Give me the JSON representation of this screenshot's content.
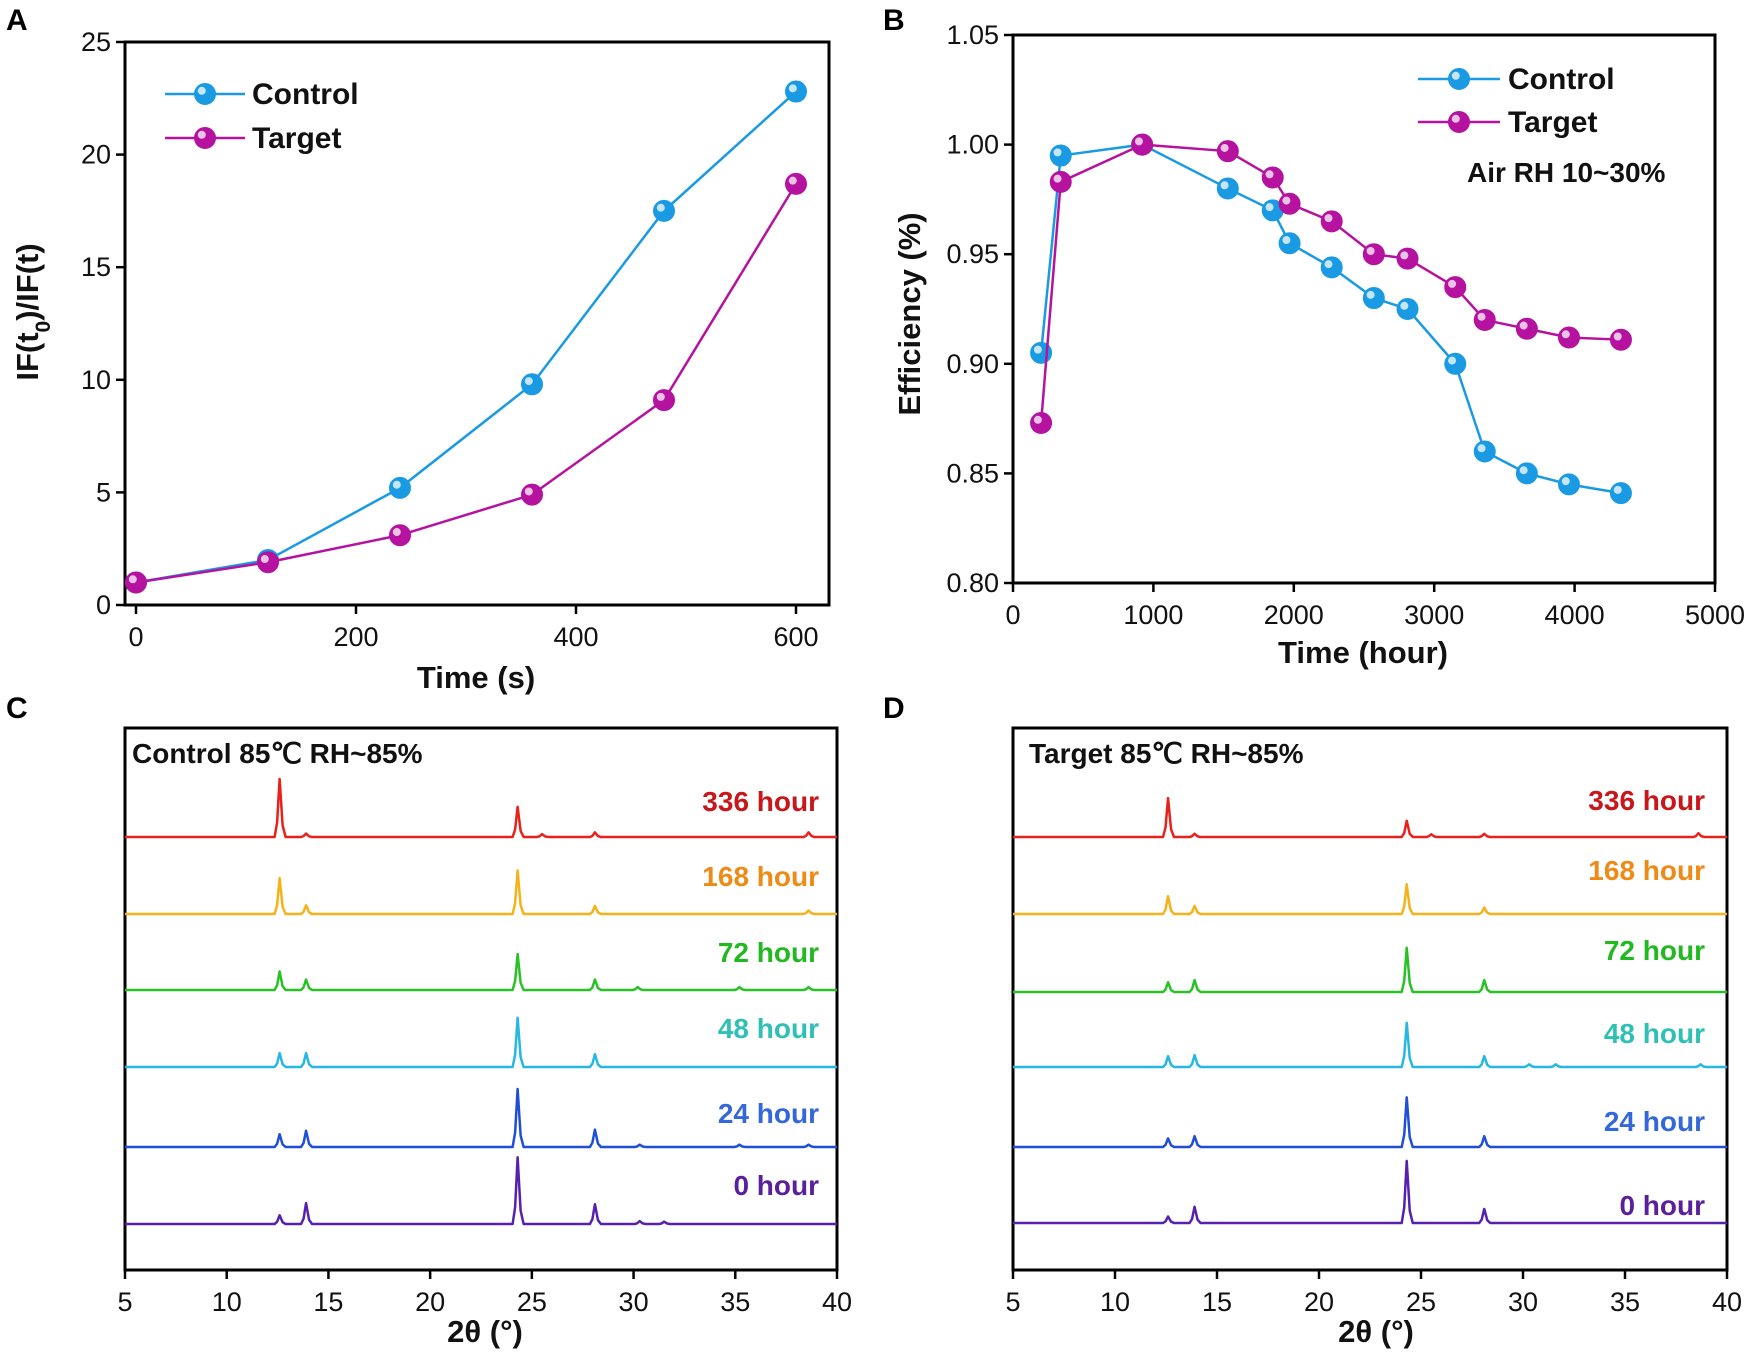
{
  "colors": {
    "control": "#1a9ae3",
    "target": "#b5129f",
    "axis": "#000000"
  },
  "chart_data": [
    {
      "panel": "A",
      "type": "line",
      "xlabel": "Time (s)",
      "ylabel": "IF(t0)/IF(t)",
      "xlim": [
        -10,
        630
      ],
      "ylim": [
        0,
        25
      ],
      "xticks": [
        0,
        200,
        400,
        600
      ],
      "yticks": [
        0,
        5,
        10,
        15,
        20,
        25
      ],
      "legend_position": "top-left",
      "series": [
        {
          "name": "Control",
          "color": "#1a9ae3",
          "x": [
            0,
            120,
            240,
            360,
            480,
            600
          ],
          "y": [
            1.0,
            2.0,
            5.2,
            9.8,
            17.5,
            22.8
          ]
        },
        {
          "name": "Target",
          "color": "#b5129f",
          "x": [
            0,
            120,
            240,
            360,
            480,
            600
          ],
          "y": [
            1.0,
            1.9,
            3.1,
            4.9,
            9.1,
            18.7
          ]
        }
      ]
    },
    {
      "panel": "B",
      "type": "line",
      "xlabel": "Time (hour)",
      "ylabel": "Efficiency (%)",
      "xlim": [
        0,
        5000
      ],
      "ylim": [
        0.8,
        1.05
      ],
      "xticks": [
        0,
        1000,
        2000,
        3000,
        4000,
        5000
      ],
      "yticks": [
        0.8,
        0.85,
        0.9,
        0.95,
        1.0,
        1.05
      ],
      "legend_position": "top-right",
      "annotation": "Air RH 10~30%",
      "series": [
        {
          "name": "Control",
          "color": "#1a9ae3",
          "x": [
            200,
            340,
            920,
            1530,
            1850,
            1970,
            2270,
            2570,
            2810,
            3150,
            3360,
            3660,
            3960,
            4330
          ],
          "y": [
            0.905,
            0.995,
            1.0,
            0.98,
            0.97,
            0.955,
            0.944,
            0.93,
            0.925,
            0.9,
            0.86,
            0.85,
            0.845,
            0.841
          ]
        },
        {
          "name": "Target",
          "color": "#b5129f",
          "x": [
            200,
            340,
            920,
            1530,
            1850,
            1970,
            2270,
            2570,
            2810,
            3150,
            3360,
            3660,
            3960,
            4330
          ],
          "y": [
            0.873,
            0.983,
            1.0,
            0.997,
            0.985,
            0.973,
            0.965,
            0.95,
            0.948,
            0.935,
            0.92,
            0.916,
            0.912,
            0.911
          ]
        }
      ]
    },
    {
      "panel": "C",
      "type": "line",
      "title": "Control 85℃ RH~85%",
      "xlabel": "2θ (°)",
      "xlim": [
        5,
        40
      ],
      "xticks": [
        5,
        10,
        15,
        20,
        25,
        30,
        35,
        40
      ],
      "series": [
        {
          "name": "336 hour",
          "color": "#e8221b",
          "label_color": "#c8171a",
          "peaks": [
            [
              12.6,
              1.0
            ],
            [
              13.9,
              0.06
            ],
            [
              24.3,
              0.52
            ],
            [
              25.5,
              0.05
            ],
            [
              28.1,
              0.08
            ],
            [
              38.6,
              0.08
            ]
          ]
        },
        {
          "name": "168 hour",
          "color": "#f6b21a",
          "label_color": "#f08a16",
          "peaks": [
            [
              12.6,
              0.62
            ],
            [
              13.9,
              0.15
            ],
            [
              24.3,
              0.75
            ],
            [
              28.1,
              0.14
            ],
            [
              38.6,
              0.06
            ]
          ]
        },
        {
          "name": "72 hour",
          "color": "#28c225",
          "label_color": "#22b81f",
          "peaks": [
            [
              12.6,
              0.32
            ],
            [
              13.9,
              0.18
            ],
            [
              24.3,
              0.62
            ],
            [
              28.1,
              0.18
            ],
            [
              30.2,
              0.05
            ],
            [
              35.2,
              0.05
            ],
            [
              38.6,
              0.05
            ]
          ]
        },
        {
          "name": "48 hour",
          "color": "#27b7e3",
          "label_color": "#2ec0b5",
          "peaks": [
            [
              12.6,
              0.24
            ],
            [
              13.9,
              0.24
            ],
            [
              24.3,
              0.85
            ],
            [
              28.1,
              0.22
            ]
          ]
        },
        {
          "name": "24 hour",
          "color": "#1f4fd6",
          "label_color": "#3468d8",
          "peaks": [
            [
              12.6,
              0.22
            ],
            [
              13.9,
              0.28
            ],
            [
              24.3,
              1.0
            ],
            [
              28.1,
              0.3
            ],
            [
              30.3,
              0.04
            ],
            [
              35.2,
              0.04
            ],
            [
              38.6,
              0.04
            ]
          ]
        },
        {
          "name": "0 hour",
          "color": "#5621ae",
          "label_color": "#5a1f9c",
          "peaks": [
            [
              12.6,
              0.15
            ],
            [
              13.9,
              0.36
            ],
            [
              24.3,
              1.15
            ],
            [
              28.1,
              0.34
            ],
            [
              30.3,
              0.05
            ],
            [
              31.5,
              0.04
            ]
          ]
        }
      ]
    },
    {
      "panel": "D",
      "type": "line",
      "title": "Target 85℃ RH~85%",
      "xlabel": "2θ (°)",
      "xlim": [
        5,
        40
      ],
      "xticks": [
        5,
        10,
        15,
        20,
        25,
        30,
        35,
        40
      ],
      "series": [
        {
          "name": "336 hour",
          "color": "#e8221b",
          "label_color": "#c8171a",
          "peaks": [
            [
              12.6,
              0.72
            ],
            [
              13.9,
              0.06
            ],
            [
              24.3,
              0.3
            ],
            [
              25.5,
              0.05
            ],
            [
              28.1,
              0.06
            ],
            [
              38.6,
              0.07
            ]
          ]
        },
        {
          "name": "168 hour",
          "color": "#f6b21a",
          "label_color": "#f08a16",
          "peaks": [
            [
              12.6,
              0.33
            ],
            [
              13.9,
              0.15
            ],
            [
              24.3,
              0.55
            ],
            [
              28.1,
              0.12
            ]
          ]
        },
        {
          "name": "72 hour",
          "color": "#28c225",
          "label_color": "#22b81f",
          "peaks": [
            [
              12.6,
              0.18
            ],
            [
              13.9,
              0.22
            ],
            [
              24.3,
              0.82
            ],
            [
              28.1,
              0.22
            ]
          ]
        },
        {
          "name": "48 hour",
          "color": "#27b7e3",
          "label_color": "#2ec0b5",
          "peaks": [
            [
              12.6,
              0.2
            ],
            [
              13.9,
              0.22
            ],
            [
              24.3,
              0.82
            ],
            [
              28.1,
              0.2
            ],
            [
              30.3,
              0.05
            ],
            [
              31.6,
              0.05
            ],
            [
              38.7,
              0.05
            ]
          ]
        },
        {
          "name": "24 hour",
          "color": "#1f4fd6",
          "label_color": "#3468d8",
          "peaks": [
            [
              12.6,
              0.16
            ],
            [
              13.9,
              0.2
            ],
            [
              24.3,
              0.92
            ],
            [
              28.1,
              0.2
            ]
          ]
        },
        {
          "name": "0 hour",
          "color": "#5621ae",
          "label_color": "#5a1f9c",
          "peaks": [
            [
              12.6,
              0.12
            ],
            [
              13.9,
              0.3
            ],
            [
              24.3,
              1.15
            ],
            [
              28.1,
              0.26
            ]
          ]
        }
      ]
    }
  ]
}
